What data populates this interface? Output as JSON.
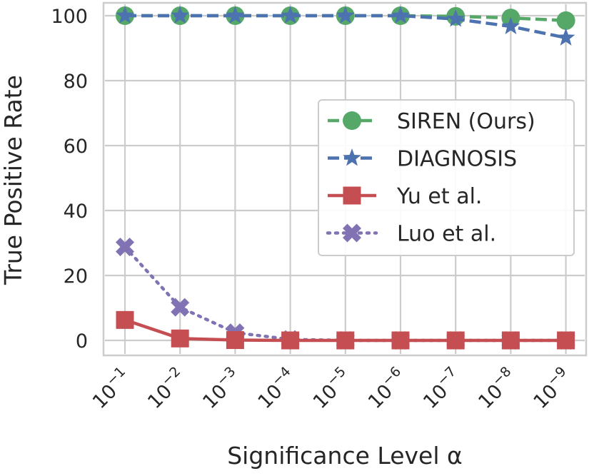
{
  "chart_data": {
    "type": "line",
    "xlabel": "Significance Level α",
    "ylabel": "True Positive Rate",
    "categories": [
      "10⁻¹",
      "10⁻²",
      "10⁻³",
      "10⁻⁴",
      "10⁻⁵",
      "10⁻⁶",
      "10⁻⁷",
      "10⁻⁸",
      "10⁻⁹"
    ],
    "x_ticks": [
      {
        "base": "10",
        "exp": "−1"
      },
      {
        "base": "10",
        "exp": "−2"
      },
      {
        "base": "10",
        "exp": "−3"
      },
      {
        "base": "10",
        "exp": "−4"
      },
      {
        "base": "10",
        "exp": "−5"
      },
      {
        "base": "10",
        "exp": "−6"
      },
      {
        "base": "10",
        "exp": "−7"
      },
      {
        "base": "10",
        "exp": "−8"
      },
      {
        "base": "10",
        "exp": "−9"
      }
    ],
    "y_ticks": [
      0,
      20,
      40,
      60,
      80,
      100
    ],
    "ylim": [
      -5,
      104
    ],
    "grid": true,
    "legend_position": "right",
    "series": [
      {
        "name": "SIREN (Ours)",
        "color": "#55a868",
        "marker": "circle",
        "line": "dashed",
        "values": [
          100,
          100,
          100,
          100,
          100,
          100,
          99.8,
          99.3,
          98.5
        ]
      },
      {
        "name": "DIAGNOSIS",
        "color": "#4c72b0",
        "marker": "star",
        "line": "dashed",
        "values": [
          100,
          100,
          100,
          100,
          100,
          100,
          99.0,
          96.7,
          93.2
        ]
      },
      {
        "name": "Yu et al.",
        "color": "#c44e52",
        "marker": "square",
        "line": "solid",
        "values": [
          6.3,
          0.6,
          0.1,
          0,
          0,
          0,
          0,
          0,
          0
        ]
      },
      {
        "name": "Luo et al.",
        "color": "#8172b3",
        "marker": "x",
        "line": "dotted",
        "values": [
          28.8,
          10.2,
          2.4,
          0.3,
          0,
          0,
          0,
          0,
          0
        ]
      }
    ]
  }
}
